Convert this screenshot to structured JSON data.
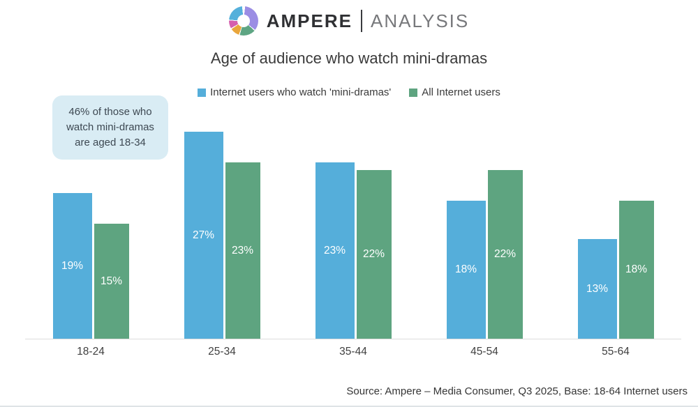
{
  "logo": {
    "brand": "AMPERE",
    "brand_secondary": "ANALYSIS",
    "donut_colors": [
      "#55b0db",
      "#9b8de4",
      "#5ea583",
      "#e9a63c",
      "#d45fae"
    ]
  },
  "title": "Age of audience who watch mini-dramas",
  "legend": [
    {
      "label": "Internet users who watch 'mini-dramas'",
      "color": "#55aeda"
    },
    {
      "label": "All Internet users",
      "color": "#5ea480"
    }
  ],
  "annotation": "46% of those who watch mini-dramas are aged 18-34",
  "chart_data": {
    "type": "bar",
    "categories": [
      "18-24",
      "25-34",
      "35-44",
      "45-54",
      "55-64"
    ],
    "series": [
      {
        "name": "Internet users who watch 'mini-dramas'",
        "color": "#55aeda",
        "values": [
          19,
          27,
          23,
          18,
          13
        ]
      },
      {
        "name": "All Internet users",
        "color": "#5ea480",
        "values": [
          15,
          23,
          22,
          22,
          18
        ]
      }
    ],
    "value_suffix": "%",
    "title": "Age of audience who watch mini-dramas",
    "xlabel": "",
    "ylabel": "",
    "ylim": [
      0,
      31.8
    ],
    "grid": false,
    "legend_position": "top",
    "data_labels": "inside-center-white"
  },
  "source": "Source: Ampere – Media Consumer, Q3 2025, Base: 18-64 Internet users"
}
